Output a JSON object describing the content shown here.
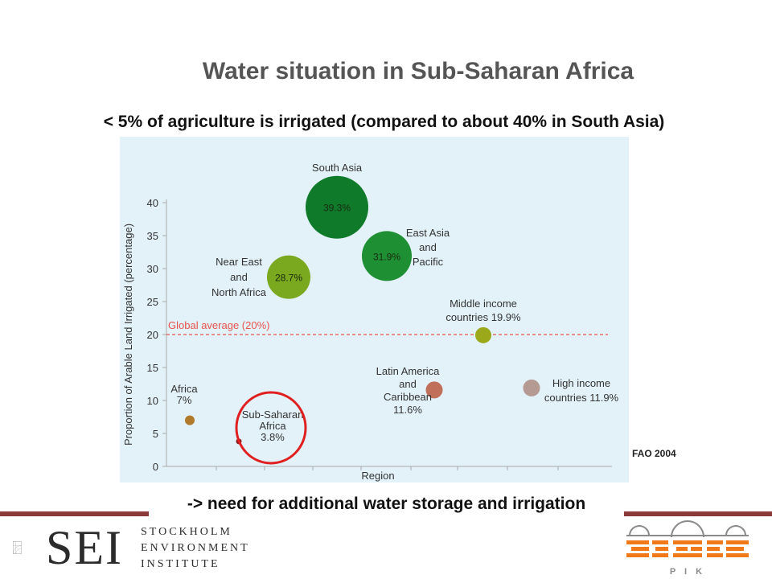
{
  "title": "Water situation in Sub-Saharan Africa",
  "subtitle": "< 5% of agriculture is irrigated (compared to about 40% in South Asia)",
  "conclusion": "-> need for additional water storage and irrigation",
  "source": "FAO 2004",
  "logos": {
    "sei_letters": "SEI",
    "sei_lines": [
      "STOCKHOLM",
      "ENVIRONMENT",
      "INSTITUTE"
    ],
    "pik_letters": "P I K"
  },
  "colors": {
    "title": "#555555",
    "chart_background": "#e3f1f8",
    "global_average_line": "#e8534f",
    "highlight_circle": "#e02020",
    "rule": "#8b3a3a",
    "pik_orange": "#f07a1a"
  },
  "chart_data": {
    "type": "scatter",
    "xlabel": "Region",
    "ylabel": "Proportion of Arable Land Irrigated (percentage)",
    "ylim": [
      0,
      40
    ],
    "yticks": [
      0,
      5,
      10,
      15,
      20,
      25,
      30,
      35,
      40
    ],
    "reference_line": {
      "label": "Global average (20%)",
      "value": 20
    },
    "points": [
      {
        "name": "Africa",
        "label_lines": [
          "Africa",
          "7%"
        ],
        "value": 7.0,
        "color": "#b07a2a"
      },
      {
        "name": "Sub-Saharan Africa",
        "label_lines": [
          "Sub-Saharan",
          "Africa",
          "3.8%"
        ],
        "value": 3.8,
        "color": "#8b1a1a",
        "highlighted": true
      },
      {
        "name": "Near East and North Africa",
        "label_lines": [
          "Near East",
          "and",
          "North Africa"
        ],
        "value": 28.7,
        "inside_label": "28.7%",
        "color": "#7aa81e"
      },
      {
        "name": "South Asia",
        "label_lines": [
          "South Asia"
        ],
        "value": 39.3,
        "inside_label": "39.3%",
        "color": "#0f7a2a"
      },
      {
        "name": "East Asia and Pacific",
        "label_lines": [
          "East Asia",
          "and",
          "Pacific"
        ],
        "value": 31.9,
        "inside_label": "31.9%",
        "color": "#1f8f34"
      },
      {
        "name": "Latin America and Caribbean",
        "label_lines": [
          "Latin America",
          "and",
          "Caribbean",
          "11.6%"
        ],
        "value": 11.6,
        "color": "#c0705a"
      },
      {
        "name": "Middle income countries",
        "label_lines": [
          "Middle income",
          "countries 19.9%"
        ],
        "value": 19.9,
        "color": "#9aa81a"
      },
      {
        "name": "High income countries",
        "label_lines": [
          "High income",
          "countries 11.9%"
        ],
        "value": 11.9,
        "color": "#b59a94"
      }
    ]
  }
}
